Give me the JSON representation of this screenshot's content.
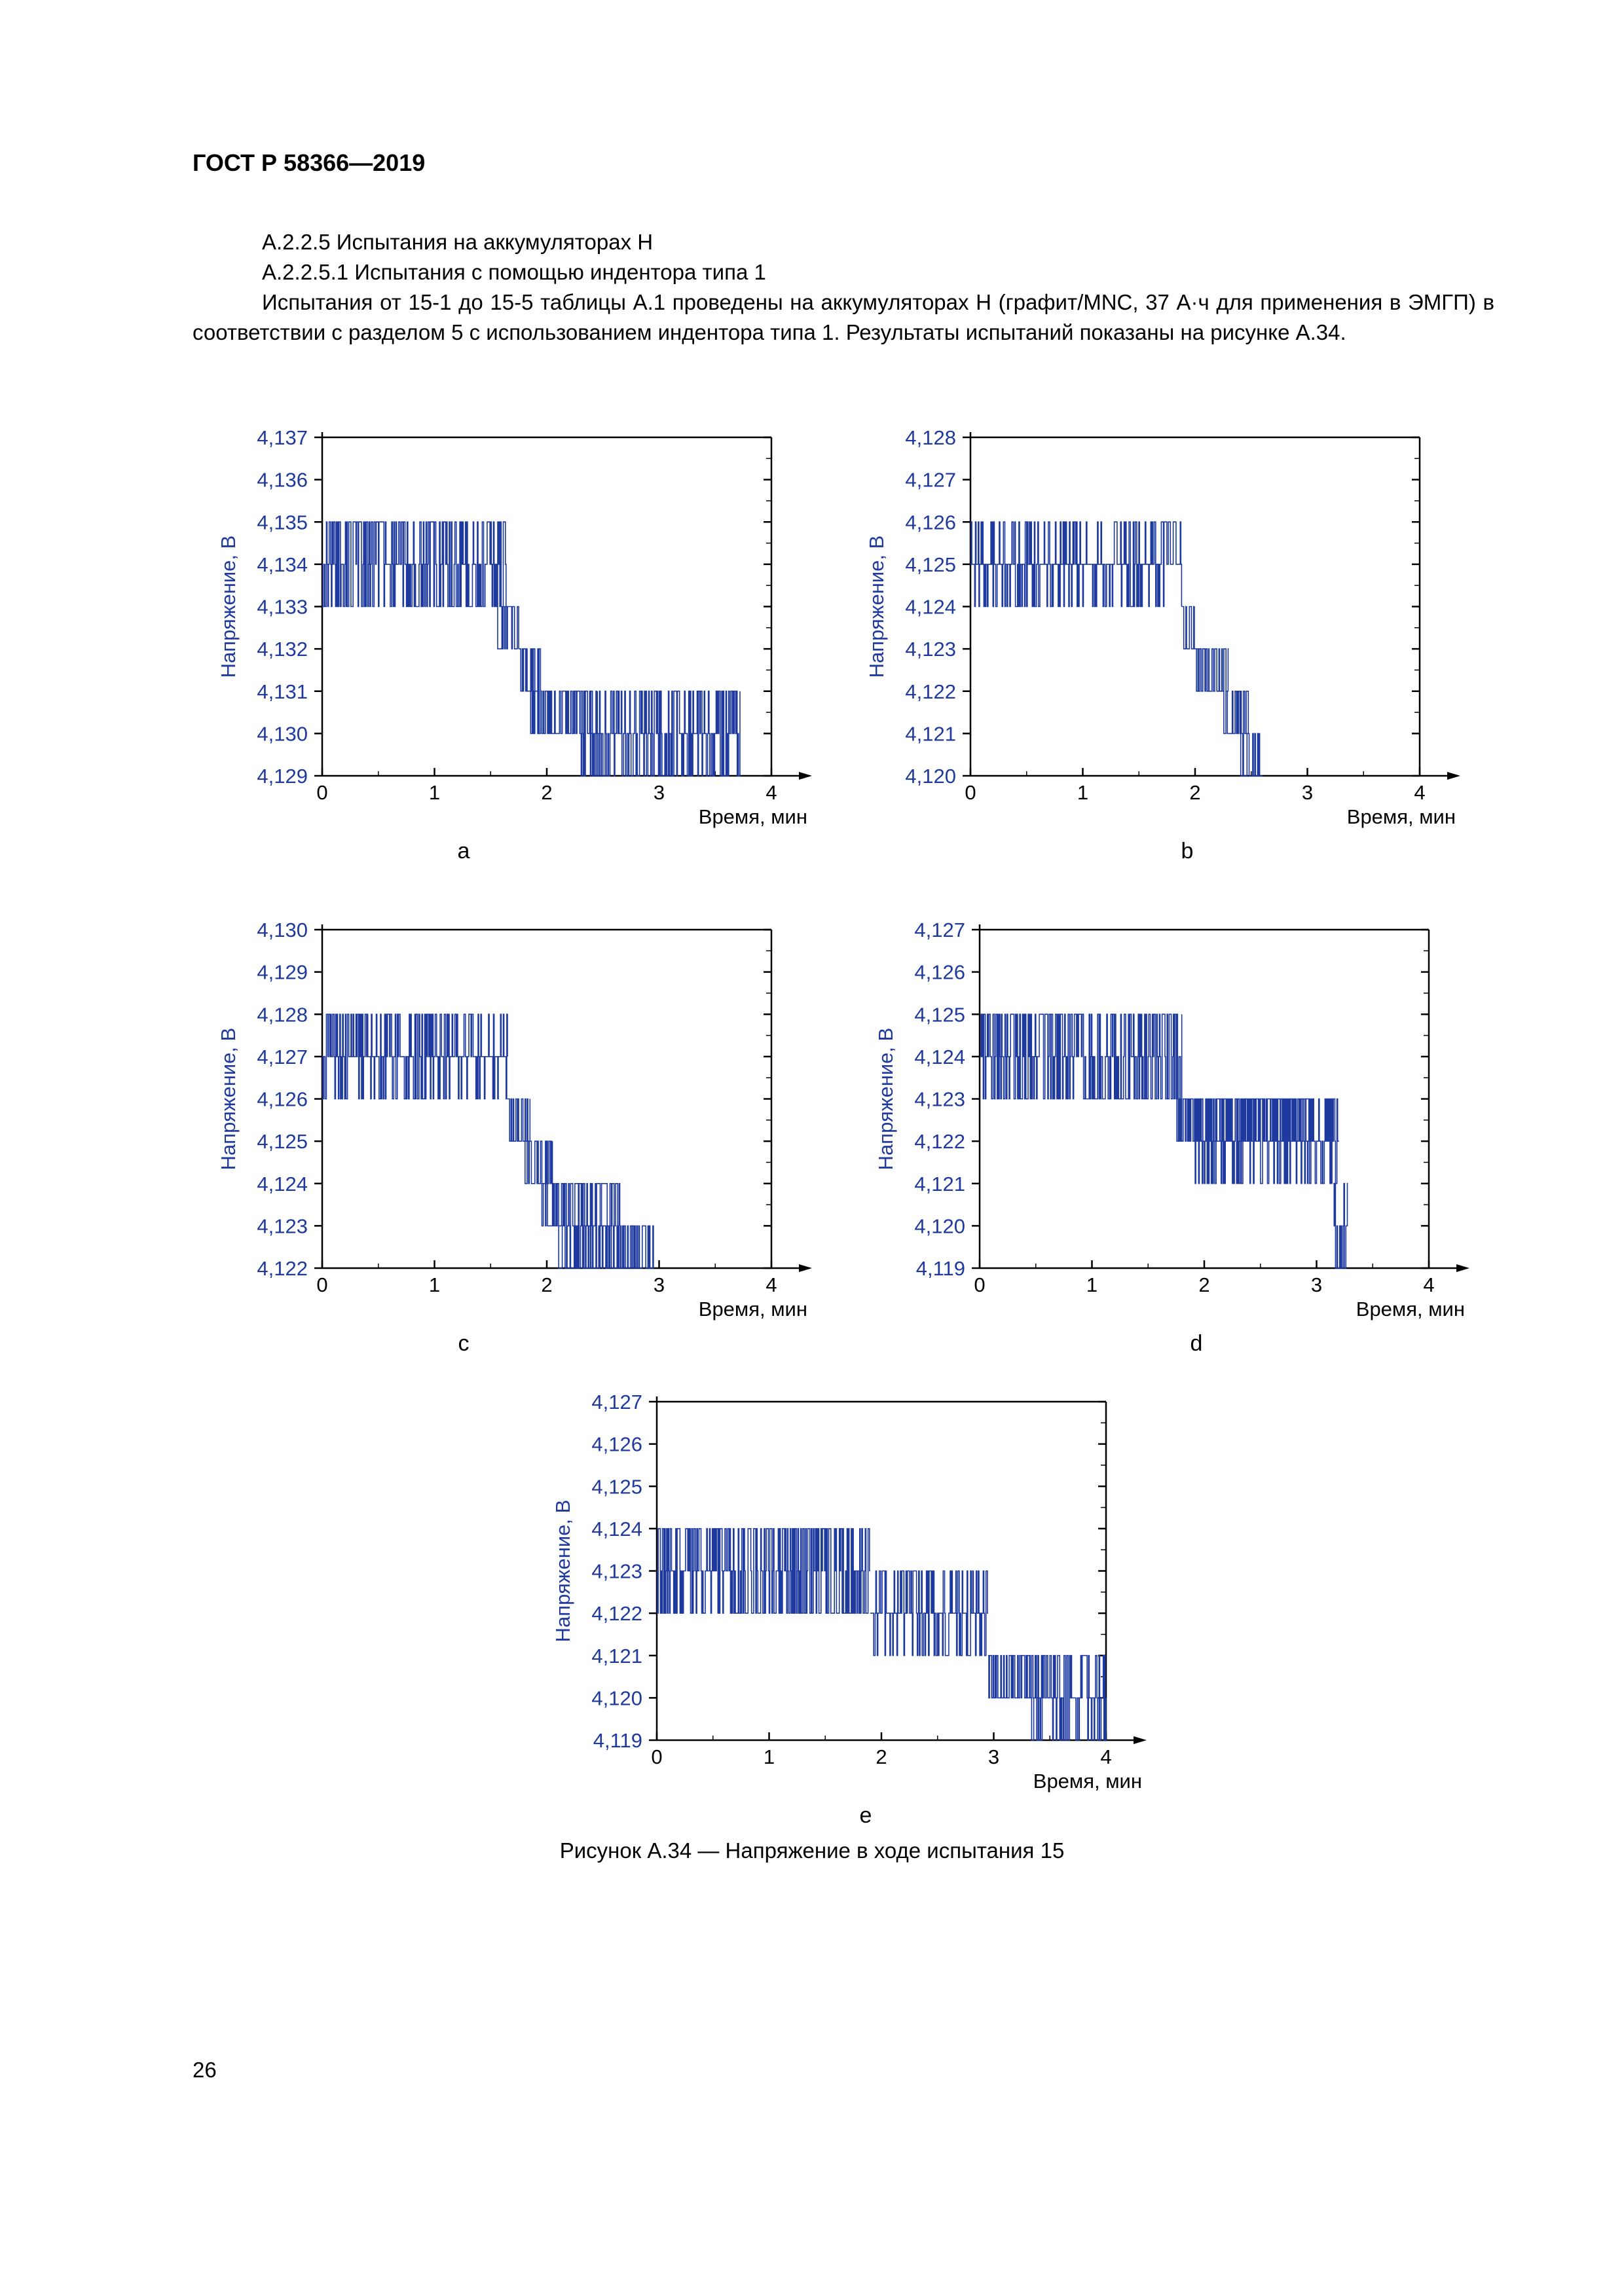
{
  "document": {
    "code": "ГОСТ Р 58366—2019",
    "page_number": "26",
    "paragraphs": [
      "А.2.2.5 Испытания на аккумуляторах Н",
      "А.2.2.5.1 Испытания с помощью индентора типа 1",
      "Испытания от 15-1 до 15-5 таблицы А.1 проведены на аккумуляторах Н (графит/MNC, 37 А·ч для применения в ЭМГП) в соответствии с разделом 5 с использованием индентора типа 1. Результаты испытаний показаны на рисунке А.34."
    ],
    "figure_caption": "Рисунок А.34 — Напряжение в ходе испытания 15"
  },
  "style": {
    "series_color": "#1f3a9e",
    "axis_color": "#000000",
    "label_color": "#1f3a9e"
  },
  "chart_data": [
    {
      "id": "a",
      "type": "line",
      "panel_label": "а",
      "xlabel": "Время, мин",
      "ylabel": "Напряжение, В",
      "xlim": [
        0,
        4
      ],
      "ylim": [
        4.129,
        4.137
      ],
      "x_ticks": [
        "0",
        "1",
        "2",
        "3",
        "4"
      ],
      "y_ticks": [
        "4,129",
        "4,130",
        "4,131",
        "4,132",
        "4,133",
        "4,134",
        "4,135",
        "4,136",
        "4,137"
      ],
      "series": [
        {
          "name": "voltage",
          "segments": [
            {
              "x0": 0.0,
              "x1": 1.65,
              "base": 4.134,
              "alt": [
                4.133,
                4.135
              ],
              "noise": 0.75
            },
            {
              "x0": 1.55,
              "x1": 1.75,
              "base": 4.133,
              "alt": [
                4.132
              ],
              "noise": 0.5
            },
            {
              "x0": 1.75,
              "x1": 1.95,
              "base": 4.132,
              "alt": [
                4.131
              ],
              "noise": 0.6
            },
            {
              "x0": 1.85,
              "x1": 2.45,
              "base": 4.131,
              "alt": [
                4.13
              ],
              "noise": 0.55
            },
            {
              "x0": 2.3,
              "x1": 3.72,
              "base": 4.13,
              "alt": [
                4.129,
                4.131
              ],
              "noise": 0.55
            }
          ]
        }
      ]
    },
    {
      "id": "b",
      "type": "line",
      "panel_label": "b",
      "xlabel": "Время, мин",
      "ylabel": "Напряжение, В",
      "xlim": [
        0,
        4
      ],
      "ylim": [
        4.12,
        4.128
      ],
      "x_ticks": [
        "0",
        "1",
        "2",
        "3",
        "4"
      ],
      "y_ticks": [
        "4,120",
        "4,121",
        "4,122",
        "4,123",
        "4,124",
        "4,125",
        "4,126",
        "4,127",
        "4,128"
      ],
      "series": [
        {
          "name": "voltage",
          "segments": [
            {
              "x0": 0.0,
              "x1": 1.88,
              "base": 4.125,
              "alt": [
                4.124,
                4.126
              ],
              "noise": 0.45
            },
            {
              "x0": 1.88,
              "x1": 2.05,
              "base": 4.124,
              "alt": [
                4.123
              ],
              "noise": 0.6
            },
            {
              "x0": 2.0,
              "x1": 2.3,
              "base": 4.123,
              "alt": [
                4.122
              ],
              "noise": 0.6
            },
            {
              "x0": 2.25,
              "x1": 2.48,
              "base": 4.122,
              "alt": [
                4.121
              ],
              "noise": 0.6
            },
            {
              "x0": 2.4,
              "x1": 2.6,
              "base": 4.121,
              "alt": [
                4.12
              ],
              "noise": 0.7
            }
          ]
        }
      ]
    },
    {
      "id": "c",
      "type": "line",
      "panel_label": "c",
      "xlabel": "Время, мин",
      "ylabel": "Напряжение, В",
      "xlim": [
        0,
        4
      ],
      "ylim": [
        4.122,
        4.13
      ],
      "x_ticks": [
        "0",
        "1",
        "2",
        "3",
        "4"
      ],
      "y_ticks": [
        "4,122",
        "4,123",
        "4,124",
        "4,125",
        "4,126",
        "4,127",
        "4,128",
        "4,129",
        "4,130"
      ],
      "series": [
        {
          "name": "voltage",
          "segments": [
            {
              "x0": 0.0,
              "x1": 1.65,
              "base": 4.127,
              "alt": [
                4.126,
                4.128
              ],
              "noise": 0.5
            },
            {
              "x0": 1.65,
              "x1": 1.85,
              "base": 4.126,
              "alt": [
                4.125
              ],
              "noise": 0.55
            },
            {
              "x0": 1.8,
              "x1": 2.05,
              "base": 4.125,
              "alt": [
                4.124
              ],
              "noise": 0.6
            },
            {
              "x0": 1.95,
              "x1": 2.65,
              "base": 4.124,
              "alt": [
                4.123
              ],
              "noise": 0.55
            },
            {
              "x0": 2.1,
              "x1": 2.95,
              "base": 4.123,
              "alt": [
                4.122
              ],
              "noise": 0.6
            }
          ]
        }
      ]
    },
    {
      "id": "d",
      "type": "line",
      "panel_label": "d",
      "xlabel": "Время, мин",
      "ylabel": "Напряжение, В",
      "xlim": [
        0,
        4
      ],
      "ylim": [
        4.119,
        4.127
      ],
      "x_ticks": [
        "0",
        "1",
        "2",
        "3",
        "4"
      ],
      "y_ticks": [
        "4,119",
        "4,120",
        "4,121",
        "4,122",
        "4,123",
        "4,124",
        "4,125",
        "4,126",
        "4,127"
      ],
      "series": [
        {
          "name": "voltage",
          "segments": [
            {
              "x0": 0.0,
              "x1": 1.8,
              "base": 4.124,
              "alt": [
                4.123,
                4.125
              ],
              "noise": 0.8
            },
            {
              "x0": 1.75,
              "x1": 2.95,
              "base": 4.123,
              "alt": [
                4.122
              ],
              "noise": 0.5
            },
            {
              "x0": 1.9,
              "x1": 3.2,
              "base": 4.122,
              "alt": [
                4.121,
                4.123
              ],
              "noise": 0.5
            },
            {
              "x0": 3.15,
              "x1": 3.28,
              "base": 4.121,
              "alt": [
                4.12,
                4.119
              ],
              "noise": 0.6
            }
          ]
        }
      ]
    },
    {
      "id": "e",
      "type": "line",
      "panel_label": "e",
      "xlabel": "Время, мин",
      "ylabel": "Напряжение, В",
      "xlim": [
        0,
        4
      ],
      "ylim": [
        4.119,
        4.127
      ],
      "x_ticks": [
        "0",
        "1",
        "2",
        "3",
        "4"
      ],
      "y_ticks": [
        "4,119",
        "4,120",
        "4,121",
        "4,122",
        "4,123",
        "4,124",
        "4,125",
        "4,126",
        "4,127"
      ],
      "series": [
        {
          "name": "voltage",
          "segments": [
            {
              "x0": 0.0,
              "x1": 1.9,
              "base": 4.123,
              "alt": [
                4.124,
                4.122
              ],
              "noise": 0.75
            },
            {
              "x0": 1.9,
              "x1": 2.95,
              "base": 4.122,
              "alt": [
                4.121,
                4.123
              ],
              "noise": 0.5
            },
            {
              "x0": 2.95,
              "x1": 3.45,
              "base": 4.121,
              "alt": [
                4.12
              ],
              "noise": 0.6
            },
            {
              "x0": 3.3,
              "x1": 4.0,
              "base": 4.12,
              "alt": [
                4.119,
                4.121
              ],
              "noise": 0.6
            }
          ]
        }
      ]
    }
  ]
}
